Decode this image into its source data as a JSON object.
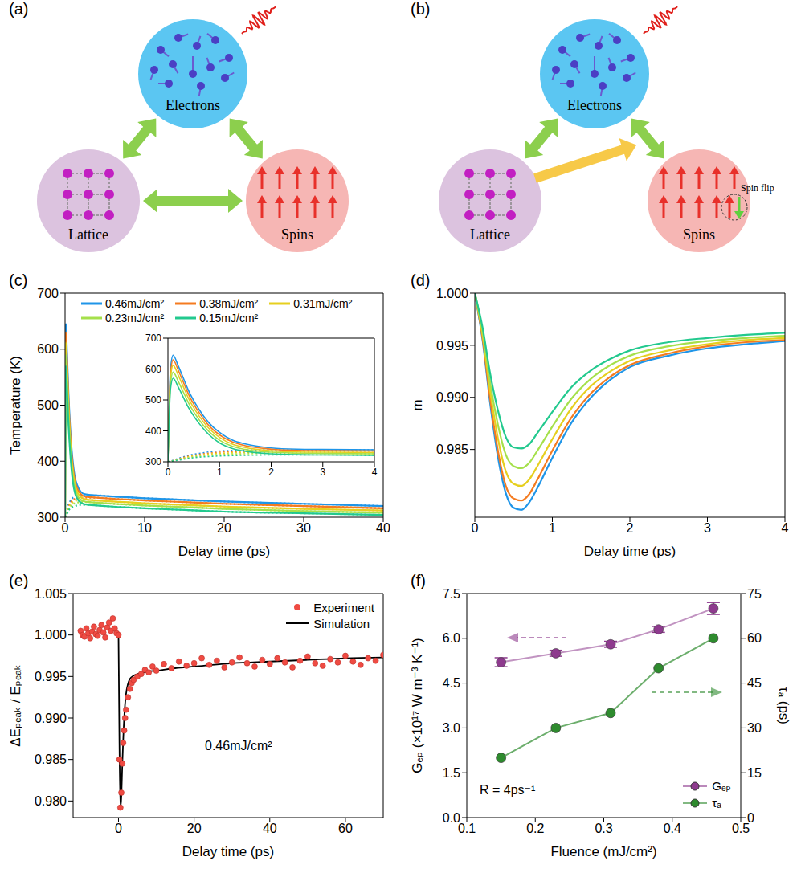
{
  "diagrams": [
    {
      "panel": "(a)",
      "nodes": {
        "electrons": "Electrons",
        "lattice": "Lattice",
        "spins": "Spins"
      }
    },
    {
      "panel": "(b)",
      "nodes": {
        "electrons": "Electrons",
        "lattice": "Lattice",
        "spins": "Spins"
      },
      "spin_flip_label": "Spin flip"
    }
  ],
  "chart_data": [
    {
      "panel": "(c)",
      "type": "line",
      "x_label": "Delay time (ps)",
      "y_label": "Temperature (K)",
      "x": [
        0,
        0.05,
        0.1,
        0.2,
        0.3,
        0.4,
        0.6,
        0.8,
        1,
        1.25,
        1.5,
        2,
        2.5,
        3,
        4,
        6,
        10,
        15,
        20,
        30,
        40
      ],
      "series": [
        {
          "name": "0.46mJ/cm²",
          "color": "#1f95e8",
          "line_style": "solid",
          "values": [
            300,
            600,
            645,
            610,
            570,
            530,
            470,
            425,
            395,
            370,
            358,
            345,
            341,
            340,
            339,
            337,
            334,
            331,
            328,
            324,
            320
          ]
        },
        {
          "name": "0.38mJ/cm²",
          "color": "#f47b20",
          "line_style": "solid",
          "values": [
            300,
            585,
            630,
            596,
            557,
            518,
            460,
            416,
            387,
            364,
            352,
            341,
            337,
            336,
            335,
            333,
            330,
            327,
            324,
            320,
            316
          ]
        },
        {
          "name": "0.31mJ/cm²",
          "color": "#e6cf1f",
          "line_style": "solid",
          "values": [
            300,
            570,
            612,
            580,
            542,
            505,
            449,
            407,
            379,
            357,
            346,
            336,
            332,
            331,
            330,
            328,
            325,
            322,
            319,
            315,
            312
          ]
        },
        {
          "name": "0.23mJ/cm²",
          "color": "#a5e04b",
          "line_style": "solid",
          "values": [
            300,
            552,
            590,
            560,
            525,
            490,
            437,
            397,
            370,
            350,
            340,
            331,
            328,
            327,
            326,
            324,
            321,
            318,
            315,
            311,
            308
          ]
        },
        {
          "name": "0.15mJ/cm²",
          "color": "#22c98e",
          "line_style": "solid",
          "values": [
            300,
            535,
            570,
            542,
            508,
            475,
            425,
            387,
            361,
            343,
            334,
            326,
            323,
            322,
            321,
            319,
            316,
            313,
            310,
            307,
            304
          ]
        }
      ],
      "lattice_series": [
        {
          "color": "#1f95e8",
          "line_style": "dotted",
          "values": [
            300,
            302,
            305,
            311,
            316,
            321,
            327,
            332,
            335,
            337,
            338,
            339,
            339,
            339,
            339,
            337,
            334,
            331,
            328,
            324,
            320
          ]
        },
        {
          "color": "#f47b20",
          "line_style": "dotted",
          "values": [
            300,
            302,
            304,
            309,
            314,
            318,
            324,
            328,
            331,
            333,
            334,
            335,
            335,
            335,
            335,
            333,
            330,
            327,
            324,
            320,
            316
          ]
        },
        {
          "color": "#e6cf1f",
          "line_style": "dotted",
          "values": [
            300,
            301,
            304,
            308,
            312,
            316,
            321,
            325,
            327,
            329,
            330,
            331,
            331,
            331,
            330,
            328,
            325,
            322,
            319,
            315,
            312
          ]
        },
        {
          "color": "#a5e04b",
          "line_style": "dotted",
          "values": [
            300,
            301,
            303,
            307,
            310,
            313,
            318,
            321,
            323,
            325,
            326,
            327,
            327,
            327,
            326,
            324,
            321,
            318,
            315,
            311,
            308
          ]
        },
        {
          "color": "#22c98e",
          "line_style": "dotted",
          "values": [
            300,
            301,
            303,
            305,
            308,
            311,
            315,
            317,
            319,
            320,
            321,
            322,
            322,
            322,
            321,
            319,
            316,
            313,
            310,
            307,
            304
          ]
        }
      ],
      "xlim": [
        0,
        40
      ],
      "xticks": [
        0,
        10,
        20,
        30,
        40
      ],
      "ylim": [
        300,
        700
      ],
      "yticks": [
        300,
        400,
        500,
        600,
        700
      ],
      "legend": "top",
      "inset": {
        "xlim": [
          0,
          4
        ],
        "xticks": [
          0,
          1,
          2,
          3,
          4
        ],
        "ylim": [
          300,
          700
        ],
        "yticks": [
          300,
          400,
          500,
          600,
          700
        ]
      }
    },
    {
      "panel": "(d)",
      "type": "line",
      "x_label": "Delay time (ps)",
      "y_label": "m",
      "x": [
        0,
        0.1,
        0.2,
        0.3,
        0.4,
        0.5,
        0.6,
        0.7,
        0.8,
        1,
        1.25,
        1.5,
        1.75,
        2,
        2.5,
        3,
        3.5,
        4
      ],
      "series": [
        {
          "color": "#1f95e8",
          "values": [
            1,
            0.9955,
            0.9893,
            0.9842,
            0.9808,
            0.9794,
            0.9792,
            0.9799,
            0.9812,
            0.9842,
            0.9876,
            0.99,
            0.9917,
            0.9929,
            0.994,
            0.9947,
            0.9951,
            0.9954
          ]
        },
        {
          "color": "#f47b20",
          "values": [
            1,
            0.9957,
            0.9897,
            0.9848,
            0.9815,
            0.9803,
            0.9801,
            0.9807,
            0.982,
            0.9849,
            0.9881,
            0.9904,
            0.992,
            0.9931,
            0.9942,
            0.9949,
            0.9953,
            0.9955
          ]
        },
        {
          "color": "#e6cf1f",
          "values": [
            1,
            0.996,
            0.9905,
            0.986,
            0.9829,
            0.9817,
            0.9815,
            0.9821,
            0.9833,
            0.986,
            0.989,
            0.9911,
            0.9925,
            0.9935,
            0.9945,
            0.9951,
            0.9955,
            0.9957
          ]
        },
        {
          "color": "#a5e04b",
          "values": [
            1,
            0.9963,
            0.9913,
            0.9873,
            0.9845,
            0.9834,
            0.9832,
            0.9837,
            0.9848,
            0.9872,
            0.9899,
            0.9918,
            0.9931,
            0.994,
            0.9949,
            0.9954,
            0.9957,
            0.9959
          ]
        },
        {
          "color": "#22c98e",
          "values": [
            1,
            0.9967,
            0.9922,
            0.9887,
            0.9862,
            0.9852,
            0.9851,
            0.9855,
            0.9865,
            0.9886,
            0.991,
            0.9926,
            0.9937,
            0.9945,
            0.9953,
            0.9957,
            0.996,
            0.9962
          ]
        }
      ],
      "xlim": [
        0,
        4
      ],
      "xticks": [
        0,
        1,
        2,
        3,
        4
      ],
      "ylim": [
        0.9785,
        1
      ],
      "yticks": [
        0.985,
        {
          "value": 0.99,
          "label": "0.990"
        },
        0.995,
        {
          "value": 1,
          "label": "1.000"
        }
      ]
    },
    {
      "panel": "(e)",
      "type": "scatter",
      "x_label": "Delay time (ps)",
      "y_label": "ΔEₚₑₐₖ / Eₚₑₐₖ",
      "series": [
        {
          "name": "Experiment",
          "type": "scatter",
          "marker": "circle",
          "color": "#ef4b43",
          "x": [
            -10,
            -9.5,
            -9,
            -8.5,
            -8,
            -7.5,
            -7,
            -6.5,
            -6,
            -5.5,
            -5,
            -4.5,
            -4,
            -3.5,
            -3,
            -2.5,
            -2,
            -1.5,
            -1,
            -0.5,
            0,
            0.25,
            0.5,
            0.75,
            1,
            1.25,
            1.5,
            1.75,
            2,
            2.5,
            3,
            3.5,
            4,
            5,
            6,
            7,
            8,
            9,
            10,
            12,
            14,
            16,
            18,
            20,
            22,
            24,
            26,
            28,
            30,
            32,
            34,
            36,
            38,
            40,
            42,
            44,
            46,
            48,
            50,
            52,
            54,
            56,
            58,
            60,
            62,
            64,
            66,
            68,
            70
          ],
          "values": [
            1.0005,
            1,
            0.9998,
            1.0008,
            1.0002,
            0.9996,
            1.0004,
            1.001,
            1.0001,
            0.9999,
            1.0006,
            1.0012,
            1.0003,
            0.9997,
            1.0009,
            1.0015,
            1.0005,
            1.002,
            1.0008,
            1.0002,
            1,
            0.985,
            0.9792,
            0.981,
            0.9845,
            0.987,
            0.9885,
            0.99,
            0.991,
            0.9925,
            0.9935,
            0.9942,
            0.9946,
            0.995,
            0.9953,
            0.9958,
            0.9955,
            0.9962,
            0.9957,
            0.9965,
            0.996,
            0.9968,
            0.9963,
            0.9966,
            0.9972,
            0.9964,
            0.9969,
            0.9961,
            0.9967,
            0.9973,
            0.9966,
            0.9962,
            0.997,
            0.9965,
            0.9972,
            0.9967,
            0.9961,
            0.9969,
            0.9974,
            0.9966,
            0.9963,
            0.9971,
            0.9967,
            0.9975,
            0.9968,
            0.9964,
            0.9972,
            0.9969,
            0.9976
          ]
        },
        {
          "name": "Simulation",
          "type": "line",
          "color": "#000000",
          "x": [
            0,
            0.25,
            0.5,
            0.75,
            1,
            1.5,
            2,
            3,
            4,
            5,
            6,
            8,
            10,
            15,
            20,
            30,
            40,
            50,
            60,
            70
          ],
          "values": [
            1,
            0.987,
            0.9792,
            0.9805,
            0.9842,
            0.99,
            0.9929,
            0.9947,
            0.9951,
            0.9953,
            0.9954,
            0.9956,
            0.9957,
            0.996,
            0.9962,
            0.9966,
            0.9968,
            0.997,
            0.9972,
            0.9973
          ]
        }
      ],
      "xlim": [
        -12,
        70
      ],
      "xticks": [
        0,
        20,
        40,
        60
      ],
      "ylim": [
        0.978,
        1.005
      ],
      "yticks": [
        {
          "value": 0.98,
          "label": "0.980"
        },
        0.985,
        {
          "value": 0.99,
          "label": "0.990"
        },
        0.995,
        {
          "value": 1,
          "label": "1.000"
        },
        1.005
      ],
      "legend": "upper right",
      "annotations": [
        "0.46mJ/cm²"
      ]
    },
    {
      "panel": "(f)",
      "type": "line",
      "x_label": "Fluence (mJ/cm²)",
      "y_label": "Gₑₚ (×10¹⁷ W m⁻³ K⁻¹)",
      "y2_label": "τₐ (ps)",
      "x": [
        0.15,
        0.23,
        0.31,
        0.38,
        0.46
      ],
      "series": [
        {
          "name": "Gₑₚ",
          "color": "#8e3a8e",
          "marker": "circle",
          "values": [
            5.2,
            5.5,
            5.8,
            6.3,
            7.0
          ],
          "errors": [
            0.15,
            0.1,
            0.1,
            0.1,
            0.2
          ]
        },
        {
          "name": "τₐ",
          "color": "#2e8b2e",
          "marker": "circle",
          "axis": "y2",
          "values": [
            20,
            30,
            35,
            50,
            60
          ]
        }
      ],
      "xlim": [
        0.1,
        0.5
      ],
      "xticks": [
        0.1,
        0.2,
        0.3,
        0.4,
        0.5
      ],
      "ylim": [
        0,
        7.5
      ],
      "yticks": [
        {
          "value": 0,
          "label": "0.0"
        },
        1.5,
        {
          "value": 3,
          "label": "3.0"
        },
        4.5,
        {
          "value": 6,
          "label": "6.0"
        },
        7.5
      ],
      "y2lim": [
        0,
        75
      ],
      "y2ticks": [
        0,
        15,
        30,
        45,
        60,
        75
      ],
      "legend": "lower right",
      "annotations": [
        "R = 4ps⁻¹"
      ]
    }
  ]
}
